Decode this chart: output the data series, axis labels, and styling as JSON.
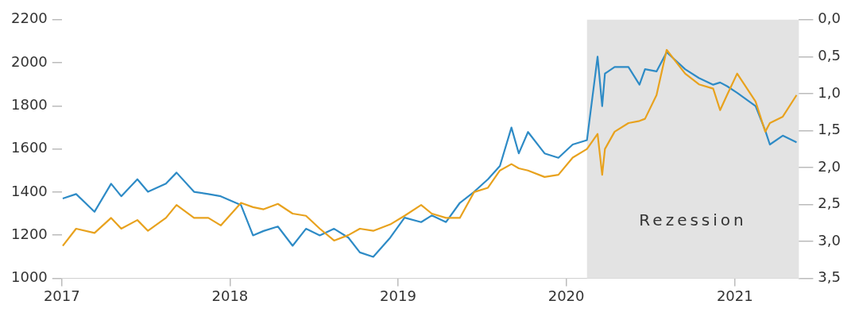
{
  "chart_data": {
    "type": "line",
    "x": [
      "2017-01-03",
      "2017-02-01",
      "2017-03-13",
      "2017-04-18",
      "2017-05-10",
      "2017-06-14",
      "2017-07-07",
      "2017-08-15",
      "2017-09-07",
      "2017-10-15",
      "2017-11-15",
      "2017-12-12",
      "2018-01-25",
      "2018-02-20",
      "2018-03-15",
      "2018-04-15",
      "2018-05-17",
      "2018-06-15",
      "2018-07-15",
      "2018-08-15",
      "2018-09-15",
      "2018-10-10",
      "2018-11-08",
      "2018-12-15",
      "2019-01-15",
      "2019-02-20",
      "2019-03-15",
      "2019-04-15",
      "2019-05-15",
      "2019-06-15",
      "2019-07-15",
      "2019-08-10",
      "2019-09-04",
      "2019-09-20",
      "2019-10-10",
      "2019-11-15",
      "2019-12-15",
      "2020-01-15",
      "2020-02-15",
      "2020-03-09",
      "2020-03-19",
      "2020-03-25",
      "2020-04-15",
      "2020-05-15",
      "2020-06-08",
      "2020-06-20",
      "2020-07-15",
      "2020-08-06",
      "2020-09-15",
      "2020-10-15",
      "2020-11-15",
      "2020-11-30",
      "2020-12-15",
      "2021-01-06",
      "2021-02-15",
      "2021-03-08",
      "2021-03-18",
      "2021-04-15",
      "2021-05-15"
    ],
    "series": [
      {
        "color": "#e8a21e",
        "values": [
          1150,
          1230,
          1210,
          1280,
          1230,
          1270,
          1220,
          1280,
          1340,
          1280,
          1280,
          1245,
          1350,
          1330,
          1320,
          1345,
          1300,
          1290,
          1230,
          1175,
          1200,
          1230,
          1220,
          1250,
          1290,
          1340,
          1300,
          1280,
          1280,
          1400,
          1420,
          1500,
          1530,
          1510,
          1500,
          1470,
          1480,
          1560,
          1600,
          1670,
          1480,
          1600,
          1680,
          1720,
          1730,
          1740,
          1850,
          2060,
          1950,
          1900,
          1880,
          1780,
          1850,
          1950,
          1820,
          1680,
          1720,
          1750,
          1850
        ]
      },
      {
        "color": "#2e8bc6",
        "axis": "y2",
        "values": [
          2.42,
          2.36,
          2.6,
          2.22,
          2.39,
          2.16,
          2.33,
          2.22,
          2.07,
          2.33,
          2.36,
          2.39,
          2.51,
          2.92,
          2.86,
          2.8,
          3.06,
          2.83,
          2.92,
          2.83,
          2.95,
          3.15,
          3.21,
          2.95,
          2.68,
          2.74,
          2.65,
          2.74,
          2.48,
          2.33,
          2.16,
          1.98,
          1.46,
          1.81,
          1.52,
          1.81,
          1.87,
          1.69,
          1.63,
          0.5,
          1.17,
          0.73,
          0.64,
          0.64,
          0.88,
          0.67,
          0.7,
          0.44,
          0.67,
          0.79,
          0.88,
          0.85,
          0.9,
          0.99,
          1.17,
          1.5,
          1.69,
          1.57,
          1.66
        ]
      }
    ],
    "xlim": [
      "2017-01-01",
      "2021-05-20"
    ],
    "xticks": [
      "2017",
      "2018",
      "2019",
      "2020",
      "2021"
    ],
    "ylim": [
      1000,
      2200
    ],
    "yticks": [
      1000,
      1200,
      1400,
      1600,
      1800,
      2000,
      2200
    ],
    "y2lim": [
      3.5,
      0
    ],
    "y2ticks": [
      {
        "value": 0,
        "label": "0,0"
      },
      {
        "value": 0.5,
        "label": "0,5"
      },
      {
        "value": 1,
        "label": "1,0"
      },
      {
        "value": 1.5,
        "label": "1,5"
      },
      {
        "value": 2,
        "label": "2,0"
      },
      {
        "value": 2.5,
        "label": "2,5"
      },
      {
        "value": 3,
        "label": "3,0"
      },
      {
        "value": 3.5,
        "label": "3,5"
      }
    ],
    "bands": [
      {
        "axis": "x",
        "from": "2020-02-15",
        "to": "2021-05-20",
        "label": "Rezession",
        "color": "#e3e3e3"
      }
    ],
    "grid": false,
    "legend": false,
    "marker": "none",
    "line_style": "solid"
  }
}
